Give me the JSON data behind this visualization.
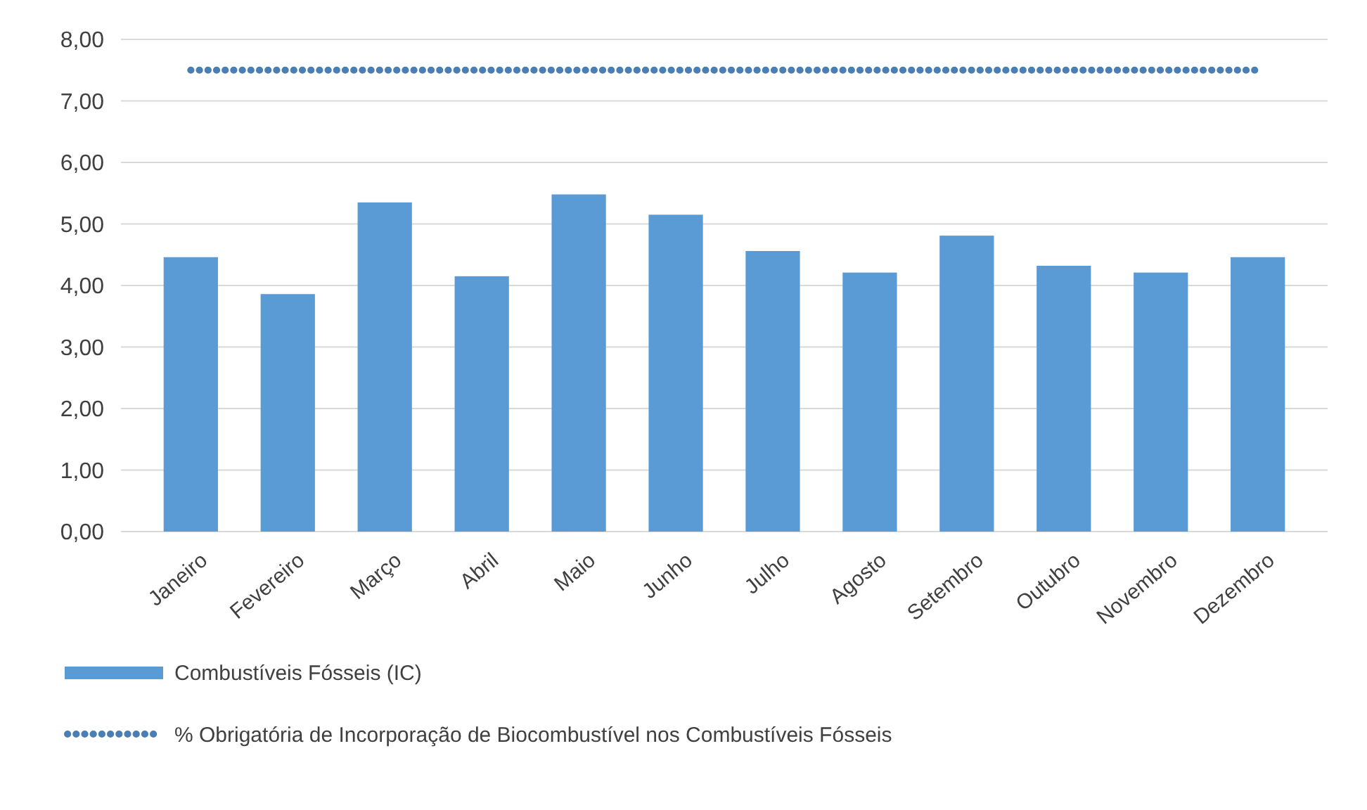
{
  "chart_data": {
    "type": "bar",
    "categories": [
      "Janeiro",
      "Fevereiro",
      "Março",
      "Abril",
      "Maio",
      "Junho",
      "Julho",
      "Agosto",
      "Setembro",
      "Outubro",
      "Novembro",
      "Dezembro"
    ],
    "series": [
      {
        "name": "Combustíveis Fósseis (IC)",
        "color": "#5b9bd5",
        "values": [
          4.46,
          3.86,
          5.35,
          4.15,
          5.48,
          5.15,
          4.56,
          4.21,
          4.81,
          4.32,
          4.21,
          4.46
        ]
      },
      {
        "name": "% Obrigatória de Incorporação de Biocombustível nos Combustíveis Fósseis",
        "type": "line",
        "color": "#4a7fb5",
        "line_style": "dotted",
        "values": [
          7.5,
          7.5,
          7.5,
          7.5,
          7.5,
          7.5,
          7.5,
          7.5,
          7.5,
          7.5,
          7.5,
          7.5
        ]
      }
    ],
    "ylim": [
      0,
      8
    ],
    "yticks": [
      {
        "value": 0,
        "label": "0,00"
      },
      {
        "value": 1,
        "label": "1,00"
      },
      {
        "value": 2,
        "label": "2,00"
      },
      {
        "value": 3,
        "label": "3,00"
      },
      {
        "value": 4,
        "label": "4,00"
      },
      {
        "value": 5,
        "label": "5,00"
      },
      {
        "value": 6,
        "label": "6,00"
      },
      {
        "value": 7,
        "label": "7,00"
      },
      {
        "value": 8,
        "label": "8,00"
      }
    ],
    "grid": "y",
    "legend": "bottom"
  }
}
